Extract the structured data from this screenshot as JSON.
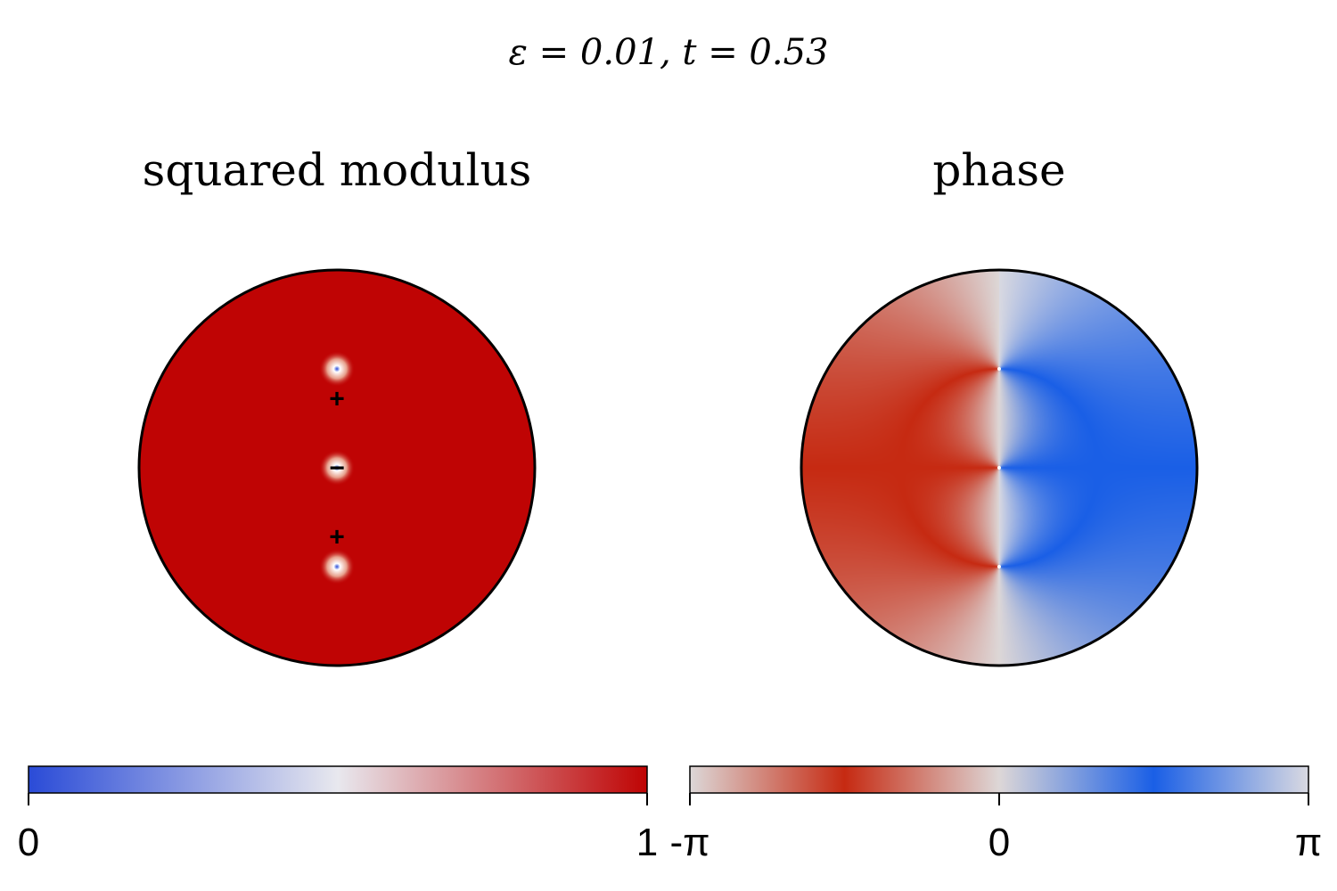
{
  "figure": {
    "title": "ε = 0.01,    t = 0.53"
  },
  "chart_data": [
    {
      "type": "heatmap",
      "title": "squared modulus",
      "domain": "disk",
      "color_range": [
        0,
        1
      ],
      "colorscale": [
        "#2a4bd7",
        "#e8e8ee",
        "#bf0404"
      ],
      "colorbar_ticks": [
        "0",
        "1"
      ],
      "background_value": 1,
      "vortices": [
        {
          "x": 0.0,
          "y": 0.5,
          "value": 0
        },
        {
          "x": 0.0,
          "y": 0.0,
          "value": 0
        },
        {
          "x": 0.0,
          "y": -0.5,
          "value": 0
        }
      ],
      "markers": [
        {
          "symbol": "+",
          "x": 0.0,
          "y": 0.35
        },
        {
          "symbol": "−",
          "x": 0.0,
          "y": 0.0
        },
        {
          "symbol": "+",
          "x": 0.0,
          "y": -0.35
        }
      ]
    },
    {
      "type": "heatmap",
      "title": "phase",
      "domain": "disk",
      "color_range": [
        "-π",
        "π"
      ],
      "colorscale": [
        "#dcd7d7",
        "#c62a12",
        "#ddd7d7",
        "#1a5fe6",
        "#d9d9e1"
      ],
      "colorbar_ticks": [
        "-π",
        "0",
        "π"
      ],
      "vortices": [
        {
          "x": 0.0,
          "y": 0.5,
          "winding": 1
        },
        {
          "x": 0.0,
          "y": 0.0,
          "winding": -1
        },
        {
          "x": 0.0,
          "y": -0.5,
          "winding": 1
        }
      ]
    }
  ]
}
